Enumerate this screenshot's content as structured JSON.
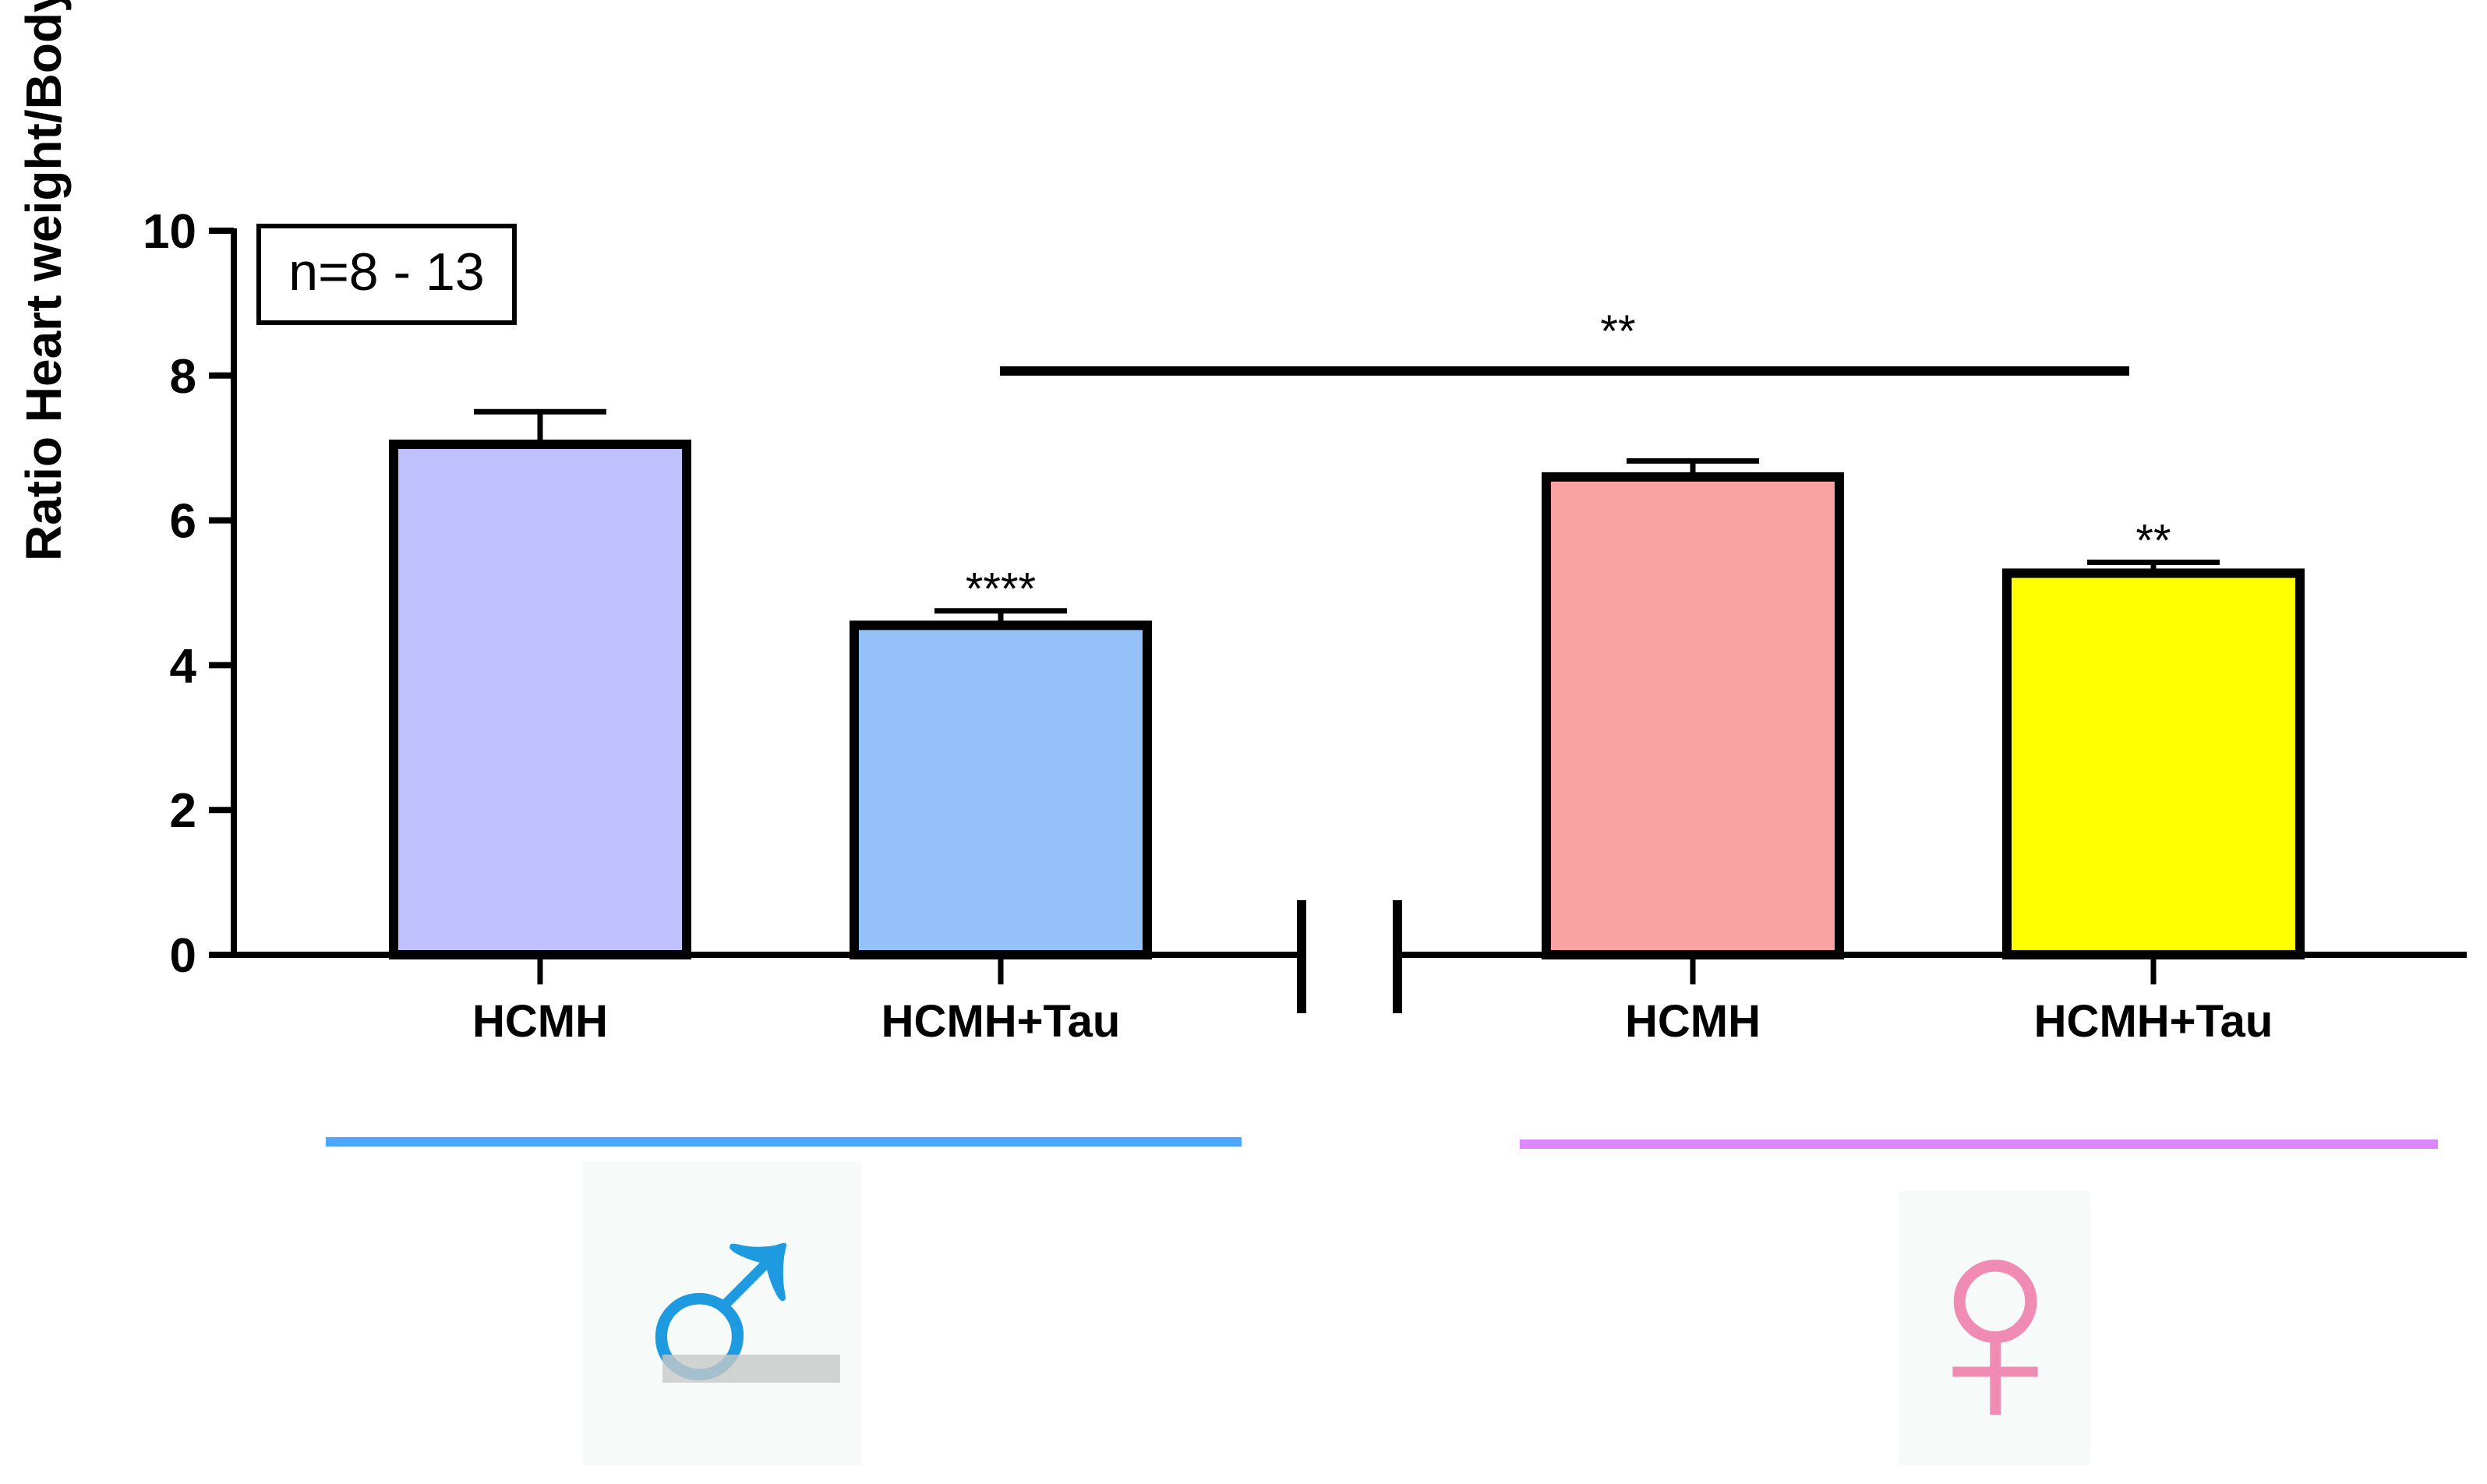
{
  "chart_data": {
    "type": "bar",
    "ylabel": "Ratio Heart weight/Body weight (g/kg)",
    "ylim": [
      0,
      10
    ],
    "yticks": [
      0,
      2,
      4,
      6,
      8,
      10
    ],
    "annotation_box": "n=8 - 13",
    "groups": [
      {
        "symbol": "♂",
        "underline_color": "#4da6ff",
        "symbol_color": "#1e9be0",
        "bars": [
          {
            "category": "HCMH",
            "value": 7.05,
            "error": 0.45,
            "color": "#c0c0ff",
            "significance": ""
          },
          {
            "category": "HCMH+Tau",
            "value": 4.55,
            "error": 0.2,
            "color": "#94c2f8",
            "significance": "****"
          }
        ]
      },
      {
        "symbol": "♀",
        "underline_color": "#dd88ff",
        "symbol_color": "#f08cb4",
        "bars": [
          {
            "category": "HCMH",
            "value": 6.6,
            "error": 0.22,
            "color": "#fba3a3",
            "significance": ""
          },
          {
            "category": "HCMH+Tau",
            "value": 5.27,
            "error": 0.15,
            "color": "#ffff00",
            "significance": "**"
          }
        ]
      }
    ],
    "comparison": {
      "from": "HCMH+Tau (male)",
      "to": "HCMH+Tau (female)",
      "label": "**"
    }
  }
}
